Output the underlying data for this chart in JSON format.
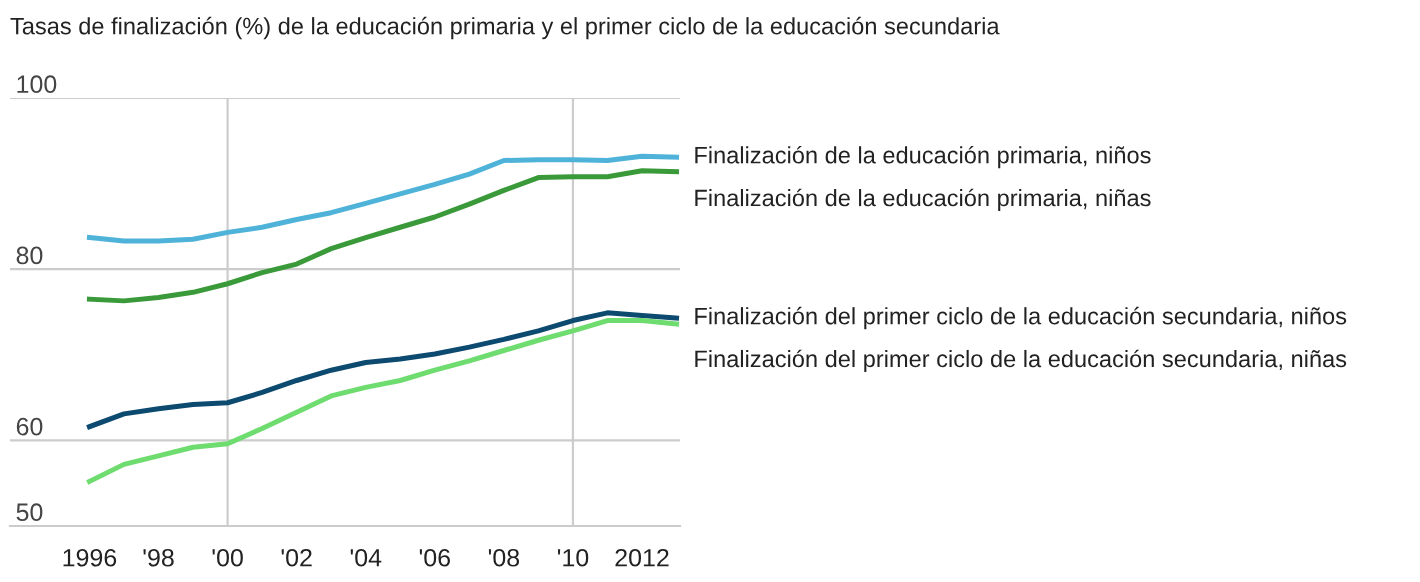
{
  "chart_data": {
    "type": "line",
    "title": "Tasas de finalización (%) de la educación primaria y el primer ciclo de la educación secundaria",
    "x": [
      1996,
      1997,
      1998,
      1999,
      2000,
      2001,
      2002,
      2003,
      2004,
      2005,
      2006,
      2007,
      2008,
      2009,
      2010,
      2011,
      2012,
      2013
    ],
    "series": [
      {
        "name": "Finalización de la educación primaria, niños",
        "color": "#4fb3d9",
        "values": [
          83.7,
          83.3,
          83.3,
          83.5,
          84.3,
          84.9,
          85.8,
          86.6,
          87.7,
          88.8,
          89.9,
          91.1,
          92.7,
          92.8,
          92.8,
          92.7,
          93.2,
          93.1
        ]
      },
      {
        "name": "Finalización de la educación primaria, niñas",
        "color": "#3a9a3a",
        "values": [
          76.5,
          76.3,
          76.7,
          77.3,
          78.3,
          79.6,
          80.6,
          82.4,
          83.7,
          84.9,
          86.1,
          87.6,
          89.2,
          90.7,
          90.8,
          90.8,
          91.5,
          91.4
        ]
      },
      {
        "name": "Finalización del primer ciclo de la educación secundaria, niños",
        "color": "#0d4a70",
        "values": [
          61.6,
          63.1,
          63.7,
          64.2,
          64.4,
          65.6,
          67.0,
          68.2,
          69.1,
          69.5,
          70.1,
          70.9,
          71.8,
          72.8,
          74.0,
          74.9,
          74.6,
          74.3
        ]
      },
      {
        "name": "Finalización del primer ciclo de la educación secundaria, niñas",
        "color": "#6fdc6f",
        "values": [
          55.2,
          57.2,
          58.2,
          59.2,
          59.6,
          61.4,
          63.3,
          65.2,
          66.2,
          67.0,
          68.2,
          69.3,
          70.5,
          71.7,
          72.8,
          74.0,
          74.0,
          73.6
        ]
      }
    ],
    "xlim": [
      1993.7,
      2013.1
    ],
    "ylim": [
      50,
      100
    ],
    "xticks": [
      {
        "value": 1996,
        "label": "1996"
      },
      {
        "value": 1998,
        "label": "'98"
      },
      {
        "value": 2000,
        "label": "'00"
      },
      {
        "value": 2002,
        "label": "'02"
      },
      {
        "value": 2004,
        "label": "'04"
      },
      {
        "value": 2006,
        "label": "'06"
      },
      {
        "value": 2008,
        "label": "'08"
      },
      {
        "value": 2010,
        "label": "'10"
      },
      {
        "value": 2012,
        "label": "2012"
      }
    ],
    "yticks": [
      50,
      60,
      80,
      100
    ],
    "grid": "y",
    "ref_lines": [
      {
        "axis": "x",
        "value": 2000,
        "color": "#cccccc"
      },
      {
        "axis": "x",
        "value": 2010,
        "color": "#cccccc"
      }
    ],
    "line_style": "solid",
    "marker": "none"
  }
}
